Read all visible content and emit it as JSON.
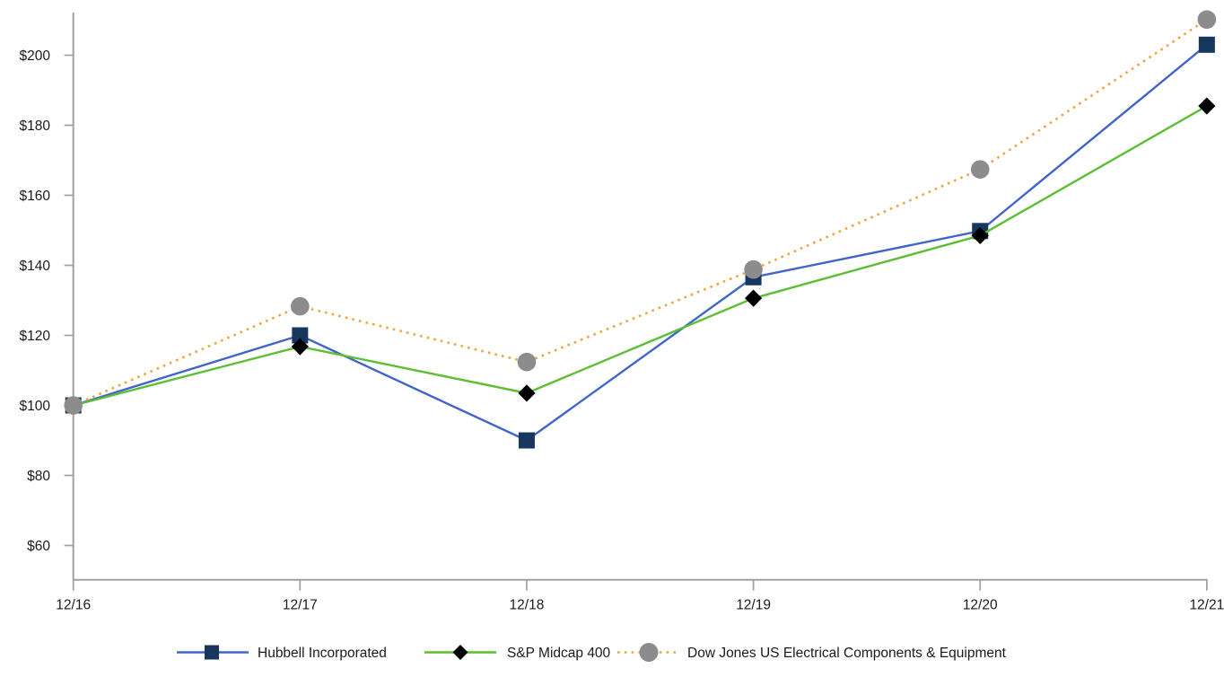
{
  "chart_data": {
    "type": "line",
    "title": "",
    "xlabel": "",
    "ylabel": "",
    "x_categories": [
      "12/16",
      "12/17",
      "12/18",
      "12/19",
      "12/20",
      "12/21"
    ],
    "y_ticks": [
      "$60",
      "$80",
      "$100",
      "$120",
      "$140",
      "$160",
      "$180",
      "$200"
    ],
    "y_tick_values": [
      60,
      80,
      100,
      120,
      140,
      160,
      180,
      200
    ],
    "ylim": [
      48,
      212
    ],
    "grid": false,
    "legend_position": "bottom",
    "background_color": "#ffffff",
    "axis_color": "#a0a0a0",
    "text_color": "#1a1a1a",
    "series": [
      {
        "name": "Hubbell Incorporated",
        "line_color": "#4065c8",
        "line_style": "solid",
        "marker": "square",
        "marker_color": "#17375e",
        "values": [
          100,
          120.0,
          90.0,
          136.6,
          149.8,
          203.0
        ]
      },
      {
        "name": "S&P Midcap 400",
        "line_color": "#5cbe32",
        "line_style": "solid",
        "marker": "diamond",
        "marker_color": "#000000",
        "values": [
          100,
          116.8,
          103.5,
          130.6,
          148.5,
          185.5
        ]
      },
      {
        "name": "Dow Jones US Electrical Components & Equipment",
        "line_color": "#efa53c",
        "line_style": "dotted",
        "marker": "circle",
        "marker_color": "#8c8c8c",
        "values": [
          100,
          128.3,
          112.4,
          138.8,
          167.4,
          210.2
        ]
      }
    ]
  }
}
